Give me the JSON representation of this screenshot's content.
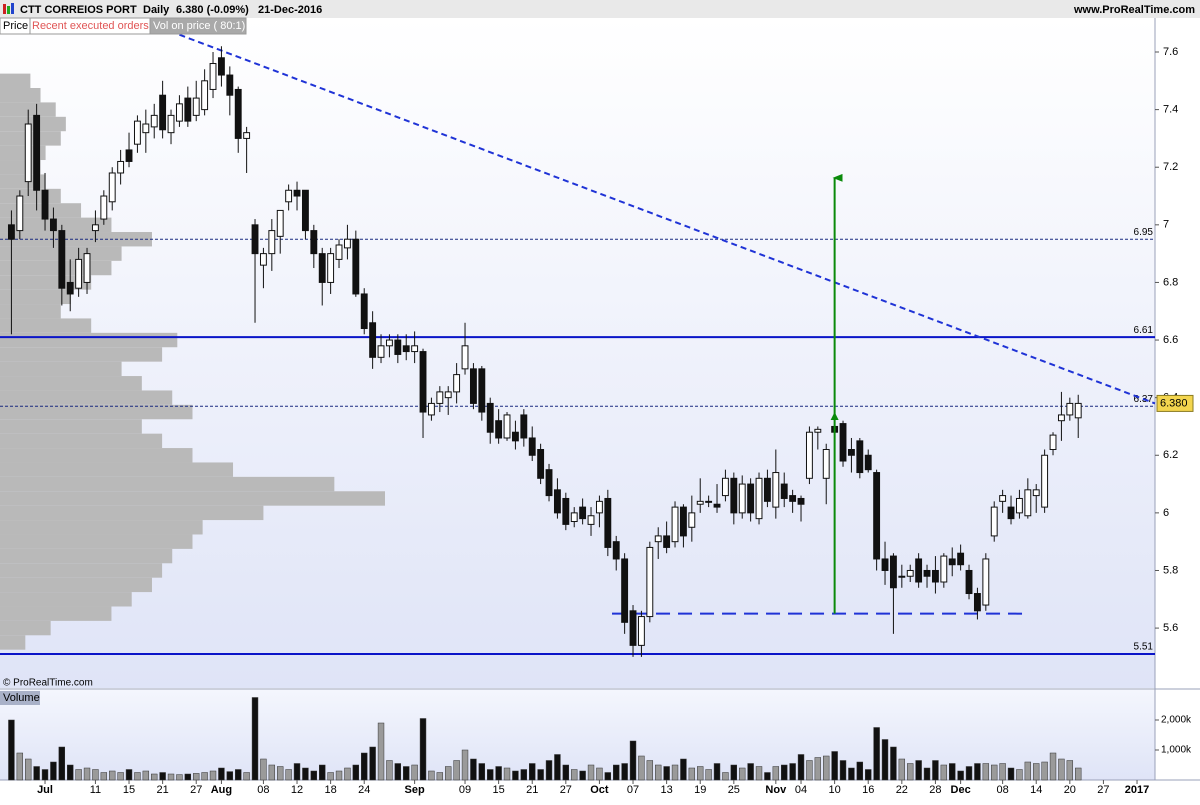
{
  "chart_data": {
    "type": "candlestick",
    "title": "CTT CORREIOS PORT",
    "interval": "Daily",
    "quote": "6.380 (-0.09%)",
    "date": "21-Dec-2016",
    "source": "www.ProRealTime.com",
    "tabs": [
      "Price",
      "Recent executed orders",
      "Vol on price ( 80:1)"
    ],
    "copyright": "© ProRealTime.com",
    "volume_title": "Volume",
    "up_color": "#ffffff",
    "down_color": "#111111",
    "open": [
      7.0,
      6.98,
      7.15,
      7.38,
      7.12,
      7.02,
      6.98,
      6.8,
      6.78,
      6.8,
      6.98,
      7.02,
      7.08,
      7.18,
      7.26,
      7.28,
      7.32,
      7.34,
      7.45,
      7.32,
      7.36,
      7.44,
      7.38,
      7.4,
      7.47,
      7.58,
      7.52,
      7.47,
      7.3,
      7.0,
      6.86,
      6.9,
      6.96,
      7.08,
      7.12,
      7.12,
      6.98,
      6.9,
      6.8,
      6.88,
      6.92,
      6.95,
      6.76,
      6.66,
      6.54,
      6.58,
      6.6,
      6.58,
      6.56,
      6.56,
      6.34,
      6.38,
      6.4,
      6.42,
      6.5,
      6.5,
      6.5,
      6.38,
      6.32,
      6.26,
      6.28,
      6.34,
      6.26,
      6.22,
      6.15,
      6.08,
      6.05,
      5.97,
      6.02,
      5.96,
      6.0,
      6.05,
      5.9,
      5.84,
      5.66,
      5.54,
      5.64,
      5.9,
      5.92,
      5.9,
      6.02,
      5.95,
      6.03,
      6.04,
      6.03,
      6.06,
      6.12,
      6.0,
      6.1,
      5.98,
      6.12,
      6.02,
      6.1,
      6.06,
      6.05,
      6.12,
      6.28,
      6.12,
      6.3,
      6.31,
      6.22,
      6.25,
      6.2,
      6.14,
      5.84,
      5.85,
      5.78,
      5.78,
      5.84,
      5.8,
      5.8,
      5.76,
      5.84,
      5.86,
      5.8,
      5.72,
      5.68,
      5.92,
      6.04,
      6.02,
      6.0,
      5.99,
      6.06,
      6.02,
      6.22,
      6.32,
      6.34,
      6.33
    ],
    "high": [
      7.05,
      7.12,
      7.4,
      7.42,
      7.18,
      7.06,
      7.0,
      6.88,
      6.92,
      6.92,
      7.05,
      7.12,
      7.2,
      7.26,
      7.32,
      7.38,
      7.4,
      7.42,
      7.5,
      7.4,
      7.45,
      7.48,
      7.5,
      7.54,
      7.6,
      7.62,
      7.55,
      7.48,
      7.34,
      7.02,
      6.92,
      7.02,
      7.05,
      7.14,
      7.15,
      7.12,
      7.0,
      6.92,
      6.92,
      6.95,
      7.0,
      6.98,
      6.78,
      6.7,
      6.62,
      6.62,
      6.62,
      6.62,
      6.63,
      6.57,
      6.4,
      6.44,
      6.44,
      6.52,
      6.66,
      6.52,
      6.51,
      6.4,
      6.36,
      6.35,
      6.32,
      6.36,
      6.3,
      6.24,
      6.17,
      6.12,
      6.07,
      6.02,
      6.05,
      6.02,
      6.06,
      6.08,
      5.92,
      5.86,
      5.68,
      5.66,
      5.9,
      5.95,
      5.97,
      6.04,
      6.03,
      6.06,
      6.12,
      6.06,
      6.1,
      6.15,
      6.14,
      6.13,
      6.12,
      6.14,
      6.15,
      6.22,
      6.14,
      6.08,
      6.06,
      6.3,
      6.3,
      6.24,
      6.36,
      6.32,
      6.26,
      6.26,
      6.22,
      6.15,
      5.9,
      5.86,
      5.82,
      5.82,
      5.86,
      5.82,
      5.85,
      5.86,
      5.88,
      5.89,
      5.82,
      5.74,
      5.86,
      6.04,
      6.08,
      6.06,
      6.08,
      6.12,
      6.1,
      6.22,
      6.28,
      6.42,
      6.4,
      6.41
    ],
    "low": [
      6.62,
      6.95,
      7.1,
      7.05,
      6.98,
      6.92,
      6.72,
      6.7,
      6.75,
      6.76,
      6.94,
      7.0,
      7.05,
      7.14,
      7.2,
      7.25,
      7.25,
      7.3,
      7.3,
      7.28,
      7.34,
      7.34,
      7.36,
      7.38,
      7.44,
      7.48,
      7.38,
      7.25,
      7.18,
      6.66,
      6.78,
      6.84,
      6.9,
      7.05,
      7.05,
      6.95,
      6.85,
      6.72,
      6.76,
      6.85,
      6.88,
      6.75,
      6.62,
      6.5,
      6.52,
      6.54,
      6.52,
      6.53,
      6.52,
      6.26,
      6.32,
      6.35,
      6.34,
      6.38,
      6.48,
      6.36,
      6.32,
      6.24,
      6.24,
      6.25,
      6.22,
      6.23,
      6.18,
      6.1,
      6.04,
      5.98,
      5.94,
      5.95,
      5.96,
      5.92,
      5.95,
      5.85,
      5.8,
      5.58,
      5.5,
      5.5,
      5.62,
      5.84,
      5.86,
      5.88,
      5.88,
      5.9,
      6.0,
      6.02,
      6.0,
      6.04,
      5.96,
      5.98,
      5.97,
      5.96,
      6.02,
      5.98,
      6.02,
      6.0,
      5.97,
      6.1,
      6.22,
      6.03,
      6.24,
      6.16,
      6.14,
      6.12,
      6.14,
      5.8,
      5.75,
      5.58,
      5.74,
      5.76,
      5.74,
      5.74,
      5.72,
      5.74,
      5.78,
      5.8,
      5.7,
      5.63,
      5.66,
      5.9,
      6.0,
      5.96,
      5.98,
      5.98,
      6.0,
      6.0,
      6.2,
      6.25,
      6.32,
      6.26
    ],
    "close": [
      6.95,
      7.1,
      7.35,
      7.12,
      7.02,
      6.98,
      6.78,
      6.76,
      6.88,
      6.9,
      7.0,
      7.1,
      7.18,
      7.22,
      7.22,
      7.36,
      7.35,
      7.38,
      7.33,
      7.38,
      7.42,
      7.36,
      7.44,
      7.5,
      7.56,
      7.52,
      7.45,
      7.3,
      7.32,
      6.9,
      6.9,
      6.98,
      7.05,
      7.12,
      7.1,
      6.98,
      6.9,
      6.8,
      6.9,
      6.93,
      6.95,
      6.76,
      6.64,
      6.54,
      6.58,
      6.6,
      6.55,
      6.56,
      6.58,
      6.35,
      6.38,
      6.42,
      6.42,
      6.48,
      6.58,
      6.38,
      6.35,
      6.28,
      6.26,
      6.34,
      6.25,
      6.26,
      6.2,
      6.12,
      6.06,
      6.0,
      5.96,
      6.0,
      5.98,
      5.99,
      6.04,
      5.88,
      5.84,
      5.62,
      5.54,
      5.64,
      5.88,
      5.92,
      5.88,
      6.02,
      5.92,
      6.0,
      6.04,
      6.04,
      6.02,
      6.12,
      6.0,
      6.1,
      6.0,
      6.12,
      6.04,
      6.14,
      6.05,
      6.04,
      6.03,
      6.28,
      6.29,
      6.22,
      6.28,
      6.18,
      6.2,
      6.14,
      6.15,
      5.84,
      5.8,
      5.74,
      5.78,
      5.8,
      5.76,
      5.78,
      5.76,
      5.85,
      5.82,
      5.82,
      5.72,
      5.66,
      5.84,
      6.02,
      6.06,
      5.98,
      6.05,
      6.08,
      6.08,
      6.2,
      6.27,
      6.34,
      6.38,
      6.38
    ],
    "volume": [
      2000000,
      900000,
      700000,
      450000,
      350000,
      600000,
      1100000,
      500000,
      350000,
      400000,
      350000,
      250000,
      300000,
      250000,
      350000,
      250000,
      300000,
      200000,
      250000,
      200000,
      180000,
      200000,
      220000,
      250000,
      300000,
      400000,
      280000,
      350000,
      250000,
      2750000,
      700000,
      500000,
      450000,
      350000,
      550000,
      400000,
      300000,
      500000,
      250000,
      300000,
      400000,
      500000,
      900000,
      1100000,
      1900000,
      650000,
      550000,
      450000,
      500000,
      2050000,
      300000,
      250000,
      450000,
      650000,
      1000000,
      700000,
      550000,
      350000,
      450000,
      400000,
      300000,
      350000,
      550000,
      350000,
      650000,
      850000,
      500000,
      350000,
      300000,
      500000,
      400000,
      250000,
      500000,
      550000,
      1300000,
      800000,
      650000,
      500000,
      450000,
      500000,
      700000,
      400000,
      450000,
      350000,
      550000,
      250000,
      500000,
      400000,
      550000,
      450000,
      250000,
      450000,
      500000,
      550000,
      850000,
      650000,
      750000,
      800000,
      950000,
      650000,
      400000,
      600000,
      350000,
      1750000,
      1350000,
      1100000,
      700000,
      550000,
      650000,
      400000,
      650000,
      500000,
      550000,
      300000,
      450000,
      550000,
      550000,
      500000,
      550000,
      400000,
      350000,
      600000,
      550000,
      600000,
      900000,
      700000,
      650000,
      400000
    ],
    "xlim": [
      -1.36,
      136.14
    ],
    "xticks": [
      {
        "value": 4,
        "label": "Jul"
      },
      {
        "value": 10,
        "label": "11"
      },
      {
        "value": 14,
        "label": "15"
      },
      {
        "value": 18,
        "label": "21"
      },
      {
        "value": 22,
        "label": "27"
      },
      {
        "value": 25,
        "label": "Aug"
      },
      {
        "value": 30,
        "label": "08"
      },
      {
        "value": 34,
        "label": "12"
      },
      {
        "value": 38,
        "label": "18"
      },
      {
        "value": 42,
        "label": "24"
      },
      {
        "value": 48,
        "label": "Sep"
      },
      {
        "value": 54,
        "label": "09"
      },
      {
        "value": 58,
        "label": "15"
      },
      {
        "value": 62,
        "label": "21"
      },
      {
        "value": 66,
        "label": "27"
      },
      {
        "value": 70,
        "label": "Oct"
      },
      {
        "value": 74,
        "label": "07"
      },
      {
        "value": 78,
        "label": "13"
      },
      {
        "value": 82,
        "label": "19"
      },
      {
        "value": 86,
        "label": "25"
      },
      {
        "value": 91,
        "label": "Nov"
      },
      {
        "value": 94,
        "label": "04"
      },
      {
        "value": 98,
        "label": "10"
      },
      {
        "value": 102,
        "label": "16"
      },
      {
        "value": 106,
        "label": "22"
      },
      {
        "value": 110,
        "label": "28"
      },
      {
        "value": 113,
        "label": "Dec"
      },
      {
        "value": 118,
        "label": "08"
      },
      {
        "value": 122,
        "label": "14"
      },
      {
        "value": 126,
        "label": "20"
      },
      {
        "value": 130,
        "label": "27"
      },
      {
        "value": 134,
        "label": "2017"
      }
    ],
    "month_labels": [
      "Jul",
      "Aug",
      "Sep",
      "Oct",
      "Nov",
      "Dec",
      "2017"
    ],
    "ylim": [
      5.392,
      7.6625
    ],
    "yticks": [
      7.6,
      7.4,
      7.2,
      7,
      6.8,
      6.6,
      6.4,
      6.2,
      6,
      5.8,
      5.6
    ],
    "volume_ylim": [
      0,
      3000000
    ],
    "volume_ticks": [
      {
        "value": 2000000,
        "label": "2,000k"
      },
      {
        "value": 1000000,
        "label": "1,000k"
      }
    ],
    "last_price": {
      "value": 6.38,
      "label": "6.380"
    },
    "levels": [
      {
        "value": 6.95,
        "style": "dashed"
      },
      {
        "value": 6.61,
        "style": "solid"
      },
      {
        "value": 6.37,
        "style": "dashed"
      },
      {
        "value": 5.51,
        "style": "solid"
      }
    ],
    "trendline": {
      "x": [
        20,
        136.14
      ],
      "y": [
        7.66,
        6.38
      ],
      "color": "#1f33d6"
    },
    "support_line": {
      "y": 5.65,
      "x": [
        71.5,
        120.5
      ],
      "color": "#1f33d6"
    },
    "target_arrow": {
      "x": 98,
      "from": 5.65,
      "to": 7.17,
      "mid": 6.35,
      "color": "#0a8a0a"
    },
    "volume_profile": {
      "prices": [
        7.5,
        7.45,
        7.4,
        7.35,
        7.3,
        7.25,
        7.2,
        7.15,
        7.1,
        7.05,
        7.0,
        6.95,
        6.9,
        6.85,
        6.8,
        6.75,
        6.7,
        6.65,
        6.6,
        6.55,
        6.5,
        6.45,
        6.4,
        6.35,
        6.3,
        6.25,
        6.2,
        6.15,
        6.1,
        6.05,
        6.0,
        5.95,
        5.9,
        5.85,
        5.8,
        5.75,
        5.7,
        5.65,
        5.6,
        5.55
      ],
      "values": [
        30,
        40,
        55,
        65,
        60,
        45,
        40,
        45,
        60,
        80,
        110,
        150,
        120,
        110,
        90,
        70,
        60,
        90,
        175,
        160,
        120,
        140,
        170,
        190,
        140,
        160,
        190,
        230,
        330,
        380,
        260,
        200,
        190,
        170,
        160,
        150,
        130,
        110,
        50,
        25
      ],
      "color": "#b9b9b9"
    }
  }
}
